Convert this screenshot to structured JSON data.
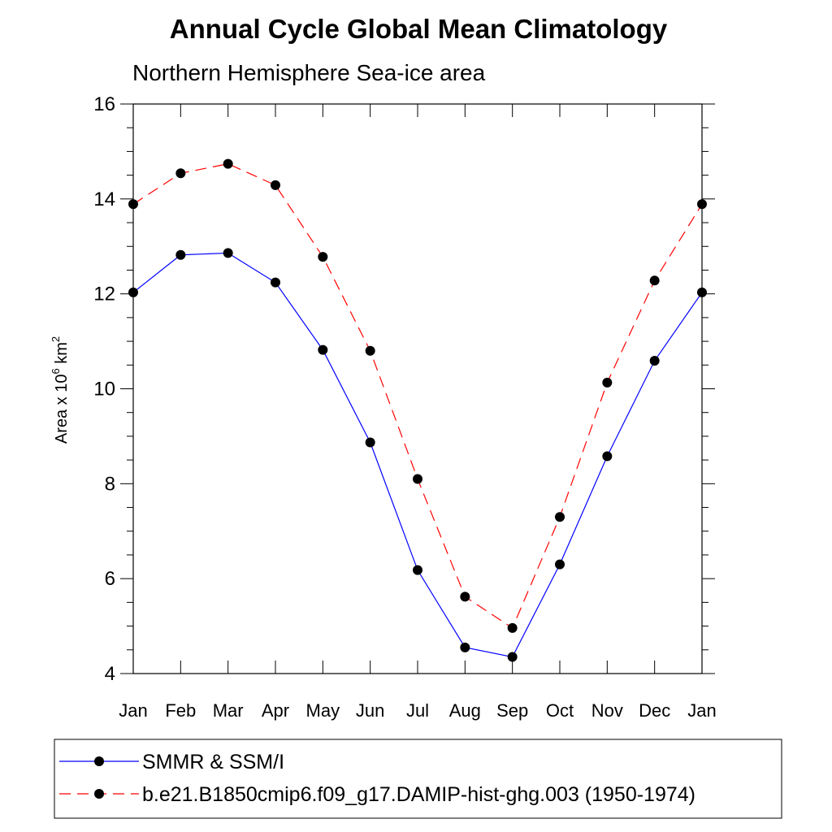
{
  "chart_data": {
    "type": "line",
    "title": "Annual Cycle Global Mean Climatology",
    "subtitle": "Northern Hemisphere Sea-ice area",
    "ylabel_base": "Area x 10",
    "ylabel_exp": "6",
    "ylabel_unit": " km",
    "ylabel_unit_exp": "2",
    "xlabel": "",
    "categories": [
      "Jan",
      "Feb",
      "Mar",
      "Apr",
      "May",
      "Jun",
      "Jul",
      "Aug",
      "Sep",
      "Oct",
      "Nov",
      "Dec",
      "Jan"
    ],
    "ylim": [
      4,
      16
    ],
    "yticks": [
      4,
      6,
      8,
      10,
      12,
      14,
      16
    ],
    "grid": false,
    "legend_placement": "bottom",
    "series": [
      {
        "name": "SMMR & SSM/I",
        "color": "#0000ff",
        "dash": "solid",
        "values": [
          12.03,
          12.82,
          12.86,
          12.24,
          10.82,
          8.87,
          6.18,
          4.55,
          4.35,
          6.3,
          8.58,
          10.59,
          12.03
        ]
      },
      {
        "name": "b.e21.B1850cmip6.f09_g17.DAMIP-hist-ghg.003 (1950-1974)",
        "color": "#ff0000",
        "dash": "dashed",
        "values": [
          13.89,
          14.54,
          14.74,
          14.29,
          12.78,
          10.8,
          8.1,
          5.62,
          4.96,
          7.3,
          10.13,
          12.28,
          13.89
        ]
      }
    ]
  }
}
